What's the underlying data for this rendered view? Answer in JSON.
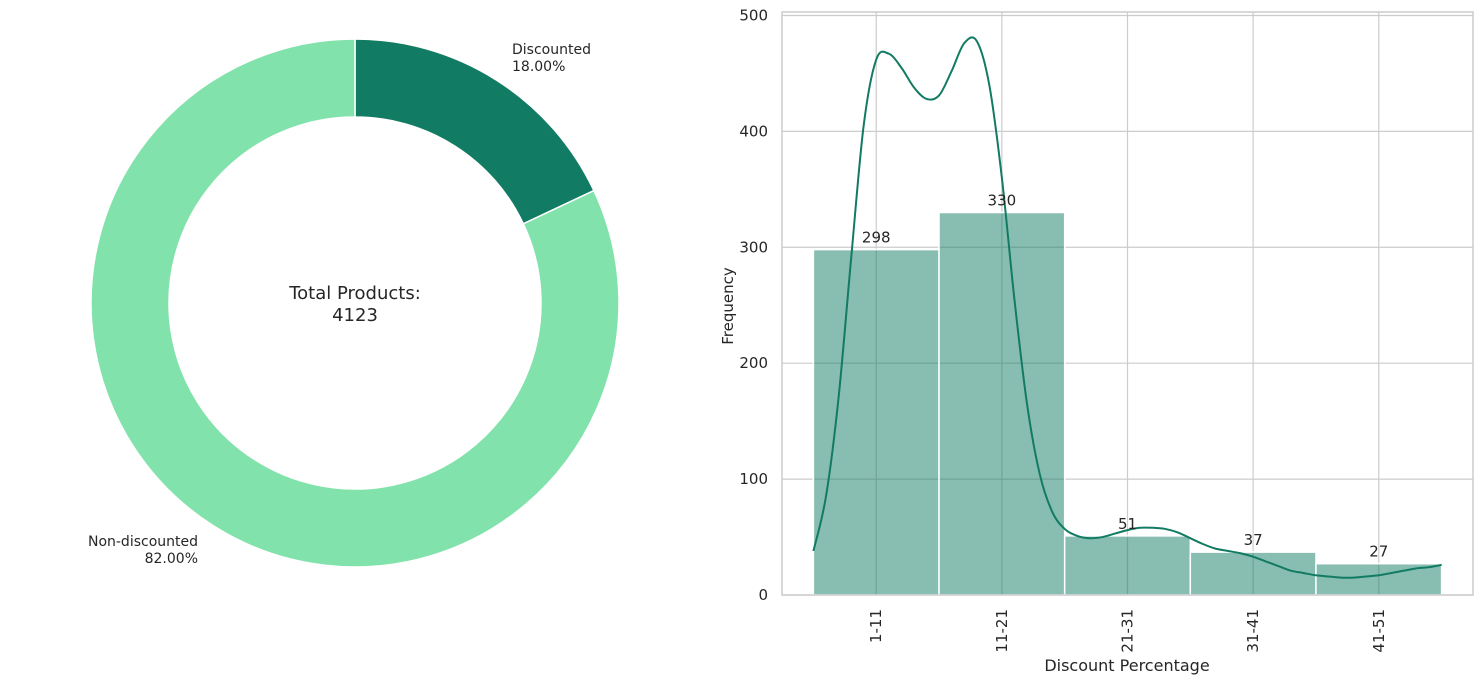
{
  "colors": {
    "discounted": "#127b63",
    "non_discounted": "#82e2ab",
    "bar_fill": "#127b63",
    "kde_line": "#127b63",
    "grid": "#cccccc",
    "text": "#262626"
  },
  "chart_data": [
    {
      "type": "pie",
      "style": "donut",
      "labels": [
        "Discounted",
        "Non-discounted"
      ],
      "values": [
        18.0,
        82.0
      ],
      "percent_labels": [
        "18.00%",
        "82.00%"
      ],
      "start_angle_deg": 90,
      "direction": "clockwise",
      "center_text": [
        "Total Products:",
        "4123"
      ]
    },
    {
      "type": "bar",
      "subtype": "histogram_with_kde",
      "categories": [
        "1-11",
        "11-21",
        "21-31",
        "31-41",
        "41-51"
      ],
      "bin_edges": [
        1,
        11,
        21,
        31,
        41,
        51
      ],
      "values": [
        298,
        330,
        51,
        37,
        27
      ],
      "data_labels": [
        "298",
        "330",
        "51",
        "37",
        "27"
      ],
      "kde": {
        "x": [
          1,
          2,
          3,
          4,
          5,
          6,
          7,
          8,
          9,
          10,
          11,
          12,
          13,
          14,
          15,
          16,
          17,
          18,
          19,
          20,
          21,
          22,
          23,
          24,
          25,
          26,
          27,
          28,
          29,
          30,
          31,
          32,
          33,
          34,
          35,
          36,
          37,
          38,
          39,
          40,
          41,
          42,
          43,
          44,
          45,
          46,
          47,
          48,
          49,
          50,
          51
        ],
        "y": [
          38,
          85,
          170,
          290,
          405,
          462,
          467,
          455,
          438,
          428,
          431,
          452,
          476,
          478,
          440,
          360,
          255,
          165,
          105,
          72,
          57,
          51,
          49,
          50,
          53,
          56,
          58,
          58,
          57,
          54,
          49,
          44,
          40,
          38,
          36,
          33,
          29,
          25,
          21,
          19,
          17,
          16,
          15,
          15,
          16,
          17,
          19,
          21,
          23,
          24,
          26
        ]
      },
      "xlabel": "Discount Percentage",
      "ylabel": "Frequency",
      "xlim": [
        -1.5,
        53.5
      ],
      "ylim": [
        0,
        503
      ],
      "yticks": [
        0,
        100,
        200,
        300,
        400,
        500
      ],
      "ytick_labels": [
        "0",
        "100",
        "200",
        "300",
        "400",
        "500"
      ],
      "xtick_positions": [
        6,
        16,
        26,
        36,
        46
      ],
      "xtick_rotation_deg": 90,
      "grid": true
    }
  ]
}
